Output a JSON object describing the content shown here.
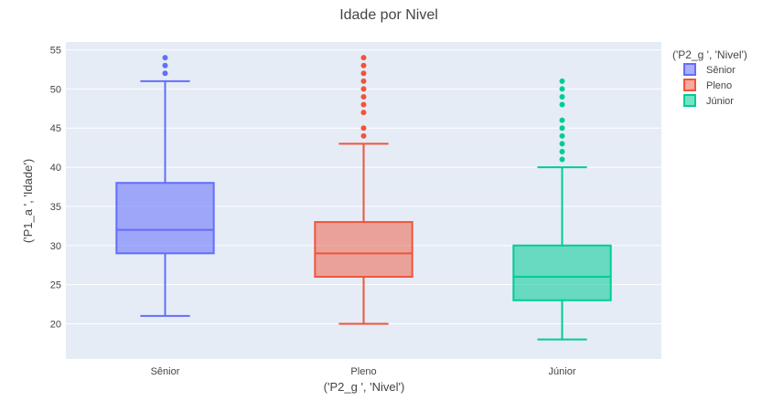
{
  "chart_data": {
    "type": "box",
    "title": "Idade por Nivel",
    "xlabel": "('P2_g ', 'Nivel')",
    "ylabel": "('P1_a ', 'Idade')",
    "categories": [
      "Sênior",
      "Pleno",
      "Júnior"
    ],
    "ylim": [
      15.5,
      56
    ],
    "yticks": [
      20,
      25,
      30,
      35,
      40,
      45,
      50,
      55
    ],
    "grid": true,
    "legend_title": "('P2_g ', 'Nivel')",
    "legend_position": "top-right",
    "series": [
      {
        "name": "Sênior",
        "color": "#636efa",
        "fill": "rgba(99,110,250,0.55)",
        "min": 21,
        "q1": 29,
        "median": 32,
        "q3": 38,
        "max": 51,
        "outliers": [
          52,
          53,
          54
        ]
      },
      {
        "name": "Pleno",
        "color": "#ef553b",
        "fill": "rgba(239,85,59,0.5)",
        "min": 20,
        "q1": 26,
        "median": 29,
        "q3": 33,
        "max": 43,
        "outliers": [
          44,
          45,
          47,
          48,
          49,
          50,
          51,
          52,
          53,
          54
        ]
      },
      {
        "name": "Júnior",
        "color": "#00cc96",
        "fill": "rgba(0,204,150,0.55)",
        "min": 18,
        "q1": 23,
        "median": 26,
        "q3": 30,
        "max": 40,
        "outliers": [
          41,
          42,
          43,
          44,
          45,
          46,
          48,
          49,
          50,
          51
        ]
      }
    ]
  }
}
